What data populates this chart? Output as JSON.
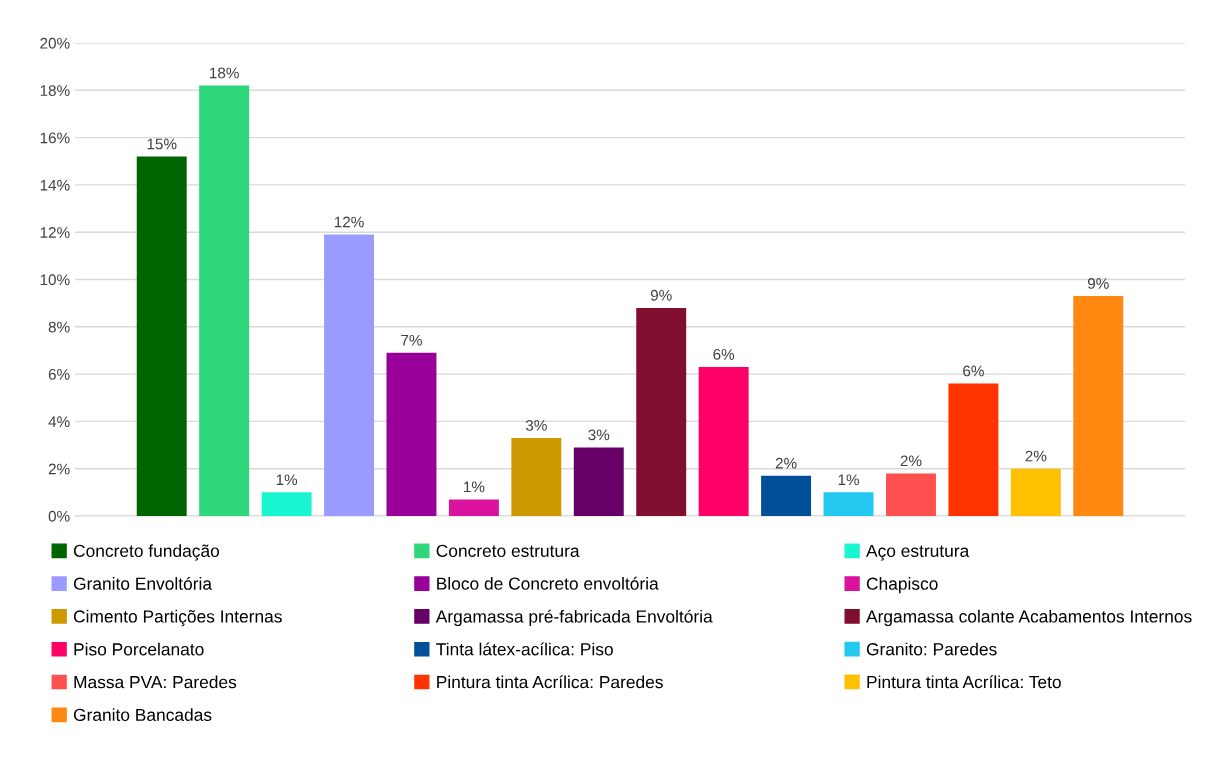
{
  "chart_data": {
    "type": "bar",
    "categories": [
      null
    ],
    "ylim": [
      0,
      20
    ],
    "yticks": [
      {
        "value": 0,
        "label": "0%"
      },
      {
        "value": 2,
        "label": "2%"
      },
      {
        "value": 4,
        "label": "4%"
      },
      {
        "value": 6,
        "label": "6%"
      },
      {
        "value": 8,
        "label": "8%"
      },
      {
        "value": 10,
        "label": "10%"
      },
      {
        "value": 12,
        "label": "12%"
      },
      {
        "value": 14,
        "label": "14%"
      },
      {
        "value": 16,
        "label": "16%"
      },
      {
        "value": 18,
        "label": "18%"
      },
      {
        "value": 20,
        "label": "20%"
      }
    ],
    "grid": "y",
    "legend": "bottom",
    "tick_labels": "y",
    "series": [
      {
        "name": "Concreto fundação",
        "color": "#006400",
        "values": [
          15.2
        ],
        "value_labels": [
          "15%"
        ]
      },
      {
        "name": "Concreto estrutura",
        "color": "#2ed87a",
        "values": [
          18.2
        ],
        "value_labels": [
          "18%"
        ]
      },
      {
        "name": "Aço estrutura",
        "color": "#19f5d0",
        "values": [
          1.0
        ],
        "value_labels": [
          "1%"
        ]
      },
      {
        "name": "Granito Envoltória",
        "color": "#9b9bff",
        "values": [
          11.9
        ],
        "value_labels": [
          "12%"
        ]
      },
      {
        "name": "Bloco de Concreto envoltória",
        "color": "#990099",
        "values": [
          6.9
        ],
        "value_labels": [
          "7%"
        ]
      },
      {
        "name": "Chapisco",
        "color": "#d9139e",
        "values": [
          0.7
        ],
        "value_labels": [
          "1%"
        ]
      },
      {
        "name": "Cimento Partições Internas",
        "color": "#cc9900",
        "values": [
          3.3
        ],
        "value_labels": [
          "3%"
        ]
      },
      {
        "name": "Argamassa pré-fabricada Envoltória",
        "color": "#660066",
        "values": [
          2.9
        ],
        "value_labels": [
          "3%"
        ]
      },
      {
        "name": "Argamassa colante Acabamentos Internos",
        "color": "#800f2f",
        "values": [
          8.8
        ],
        "value_labels": [
          "9%"
        ]
      },
      {
        "name": "Piso Porcelanato",
        "color": "#ff0066",
        "values": [
          6.3
        ],
        "value_labels": [
          "6%"
        ]
      },
      {
        "name": "Tinta látex-acílica: Piso",
        "color": "#004f99",
        "values": [
          1.7
        ],
        "value_labels": [
          "2%"
        ]
      },
      {
        "name": "Granito: Paredes",
        "color": "#22c8f0",
        "values": [
          1.0
        ],
        "value_labels": [
          "1%"
        ]
      },
      {
        "name": "Massa PVA: Paredes",
        "color": "#ff5050",
        "values": [
          1.8
        ],
        "value_labels": [
          "2%"
        ]
      },
      {
        "name": "Pintura tinta Acrílica: Paredes",
        "color": "#ff3300",
        "values": [
          5.6
        ],
        "value_labels": [
          "6%"
        ]
      },
      {
        "name": "Pintura tinta Acrílica: Teto",
        "color": "#ffc000",
        "values": [
          2.0
        ],
        "value_labels": [
          "2%"
        ]
      },
      {
        "name": "Granito Bancadas",
        "color": "#ff8811",
        "values": [
          9.3
        ],
        "value_labels": [
          "9%"
        ]
      }
    ]
  }
}
